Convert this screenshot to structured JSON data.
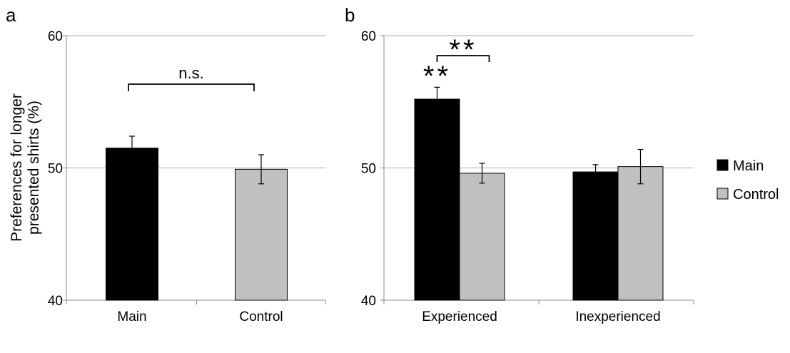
{
  "colors": {
    "main": "#000000",
    "control": "#c0c0c0",
    "grid": "#aaaaaa",
    "axis": "#888888"
  },
  "y_axis_label_line1": "Preferences for longer",
  "y_axis_label_line2": "presented shirts (%)",
  "legend": [
    {
      "label": "Main",
      "color": "#000000"
    },
    {
      "label": "Control",
      "color": "#c0c0c0"
    }
  ],
  "chart_data": [
    {
      "panel_label": "a",
      "type": "bar",
      "categories": [
        "Main",
        "Control"
      ],
      "series": [
        {
          "values": [
            51.5,
            null
          ],
          "errors": [
            0.9,
            null
          ],
          "color": "#000000"
        },
        {
          "values": [
            null,
            49.9
          ],
          "errors": [
            null,
            1.1
          ],
          "color": "#c0c0c0"
        }
      ],
      "ylim": [
        40,
        60
      ],
      "yticks": [
        "40",
        "50",
        "60"
      ],
      "gridlines": [
        50,
        60
      ],
      "annotations": [
        {
          "text": "n.s."
        }
      ]
    },
    {
      "panel_label": "b",
      "type": "bar",
      "categories": [
        "Experienced",
        "Inexperienced"
      ],
      "series": [
        {
          "name": "Main",
          "values": [
            55.2,
            49.7
          ],
          "errors": [
            0.9,
            0.55
          ],
          "color": "#000000"
        },
        {
          "name": "Control",
          "values": [
            49.6,
            50.1
          ],
          "errors": [
            0.75,
            1.3
          ],
          "color": "#c0c0c0"
        }
      ],
      "ylim": [
        40,
        60
      ],
      "yticks": [
        "40",
        "50",
        "60"
      ],
      "gridlines": [
        50,
        60
      ],
      "annotations": [
        {
          "text": "**"
        },
        {
          "text": "**"
        }
      ]
    }
  ]
}
